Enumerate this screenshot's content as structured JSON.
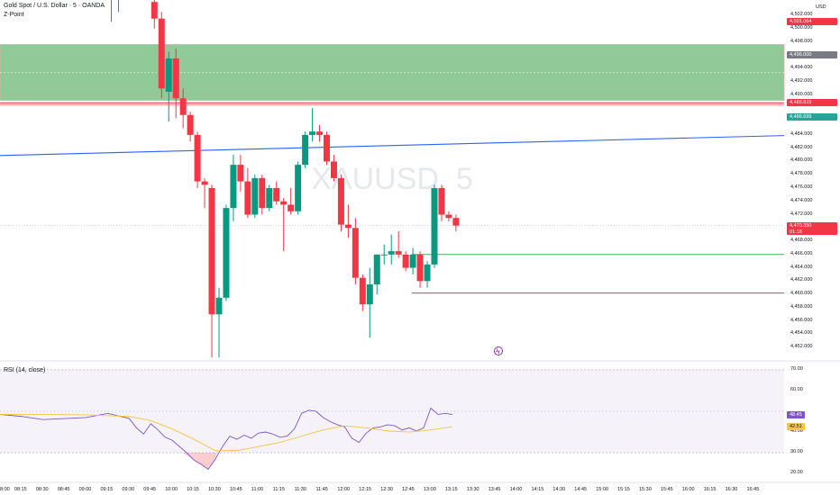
{
  "header": {
    "symbol_line": "Gold Spot / U.S. Dollar · 5 · OANDA",
    "indicator": "Z-Point",
    "currency": "USD",
    "watermark": "XAUUSD, 5"
  },
  "price_axis": {
    "ticks": [
      "4,502.000",
      "4,500.000",
      "4,498.000",
      "4,494.000",
      "4,492.000",
      "4,490.000",
      "4,484.000",
      "4,482.000",
      "4,480.000",
      "4,478.000",
      "4,476.000",
      "4,474.000",
      "4,472.000",
      "4,468.000",
      "4,466.000",
      "4,464.000",
      "4,462.000",
      "4,460.000",
      "4,458.000",
      "4,456.000",
      "4,454.000",
      "4,452.000"
    ],
    "tick_values": [
      4502,
      4500,
      4498,
      4494,
      4492,
      4490,
      4484,
      4482,
      4480,
      4478,
      4476,
      4474,
      4472,
      4468,
      4466,
      4464,
      4462,
      4460,
      4458,
      4456,
      4454,
      4452
    ],
    "range": [
      4450.4,
      4504.3
    ]
  },
  "badges": [
    {
      "label": "4,501.064",
      "value": 4501.064,
      "color": "#f23645"
    },
    {
      "label": "4,496.000",
      "value": 4496.0,
      "color": "#787b86"
    },
    {
      "label": "4,488.819",
      "value": 4488.819,
      "color": "#f23645"
    },
    {
      "label": "4,486.699",
      "value": 4486.699,
      "color": "#26a69a"
    },
    {
      "label": "4,470.350",
      "value": 4470.35,
      "color": "#f23645",
      "sub": "01:18"
    }
  ],
  "zones": {
    "supply_zone": {
      "top": 4497.6,
      "bottom": 4489.2,
      "fill": "#7fbf87"
    },
    "red_level": {
      "value": 4488.819,
      "color": "#f23645"
    },
    "blue_trendline": {
      "from": 4480.9,
      "to": 4483.9,
      "color": "#2962ff"
    },
    "green_line": {
      "value": 4466.0,
      "color": "#4caf50"
    },
    "red_line": {
      "value": 4460.2,
      "color": "#f23645"
    }
  },
  "rsi": {
    "label": "RSI (14, close)",
    "ticks": [
      "70.00",
      "60.00",
      "40.00",
      "30.00",
      "20.00"
    ],
    "tick_values": [
      70,
      60,
      40,
      30,
      20
    ],
    "range": [
      17,
      73
    ],
    "rsi_value": "48.45",
    "ma_value": "42.51",
    "rsi_color": "#7e57c2",
    "ma_color": "#f5c542"
  },
  "time_axis": {
    "labels": [
      "8:00",
      "08:15",
      "08:30",
      "08:45",
      "09:00",
      "09:15",
      "09:30",
      "09:45",
      "10:00",
      "10:15",
      "10:30",
      "10:45",
      "11:00",
      "11:15",
      "11:30",
      "11:45",
      "12:00",
      "12:15",
      "12:30",
      "12:45",
      "13:00",
      "13:15",
      "13:30",
      "13:45",
      "14:00",
      "14:15",
      "14:30",
      "14:45",
      "15:00",
      "15:15",
      "15:30",
      "15:45",
      "16:00",
      "16:15",
      "16:30",
      "16:45"
    ]
  },
  "chart_data": {
    "type": "candlestick",
    "title": "Gold Spot / U.S. Dollar · 5 · OANDA",
    "interval": "5",
    "up_color": "#089981",
    "down_color": "#f23645",
    "candles": [
      {
        "t": "09:15",
        "o": 4505.5,
        "h": 4506.0,
        "l": 4501.0,
        "c": 4504.5
      },
      {
        "t": "09:20",
        "o": 4505.0,
        "h": 4506.0,
        "l": 4502.5,
        "c": 4505.5
      },
      {
        "t": "09:45",
        "o": 4504.0,
        "h": 4505.0,
        "l": 4500.0,
        "c": 4501.5
      },
      {
        "t": "09:50",
        "o": 4501.5,
        "h": 4502.5,
        "l": 4489.5,
        "c": 4491.0
      },
      {
        "t": "09:55",
        "o": 4490.5,
        "h": 4496.5,
        "l": 4486.0,
        "c": 4495.5
      },
      {
        "t": "10:00",
        "o": 4495.5,
        "h": 4497.0,
        "l": 4486.5,
        "c": 4489.5
      },
      {
        "t": "10:05",
        "o": 4489.5,
        "h": 4491.0,
        "l": 4485.0,
        "c": 4487.0
      },
      {
        "t": "10:10",
        "o": 4487.0,
        "h": 4487.5,
        "l": 4483.0,
        "c": 4484.0
      },
      {
        "t": "10:15",
        "o": 4484.0,
        "h": 4484.5,
        "l": 4476.0,
        "c": 4477.0
      },
      {
        "t": "10:20",
        "o": 4477.0,
        "h": 4477.5,
        "l": 4473.0,
        "c": 4476.5
      },
      {
        "t": "10:25",
        "o": 4476.0,
        "h": 4476.5,
        "l": 4450.5,
        "c": 4457.0
      },
      {
        "t": "10:30",
        "o": 4457.0,
        "h": 4461.0,
        "l": 4450.5,
        "c": 4459.5
      },
      {
        "t": "10:35",
        "o": 4459.5,
        "h": 4473.5,
        "l": 4459.0,
        "c": 4473.0
      },
      {
        "t": "10:40",
        "o": 4473.0,
        "h": 4481.0,
        "l": 4471.0,
        "c": 4479.5
      },
      {
        "t": "10:45",
        "o": 4479.5,
        "h": 4481.0,
        "l": 4475.5,
        "c": 4477.0
      },
      {
        "t": "10:50",
        "o": 4477.0,
        "h": 4479.0,
        "l": 4471.5,
        "c": 4472.0
      },
      {
        "t": "10:55",
        "o": 4472.0,
        "h": 4478.0,
        "l": 4471.5,
        "c": 4477.5
      },
      {
        "t": "11:00",
        "o": 4477.5,
        "h": 4478.0,
        "l": 4472.0,
        "c": 4473.0
      },
      {
        "t": "11:05",
        "o": 4473.0,
        "h": 4476.5,
        "l": 4472.5,
        "c": 4476.0
      },
      {
        "t": "11:10",
        "o": 4476.0,
        "h": 4477.0,
        "l": 4473.5,
        "c": 4474.0
      },
      {
        "t": "11:15",
        "o": 4474.0,
        "h": 4474.5,
        "l": 4466.5,
        "c": 4473.5
      },
      {
        "t": "11:20",
        "o": 4473.5,
        "h": 4476.0,
        "l": 4472.0,
        "c": 4472.5
      },
      {
        "t": "11:25",
        "o": 4472.5,
        "h": 4480.0,
        "l": 4472.0,
        "c": 4479.5
      },
      {
        "t": "11:30",
        "o": 4479.5,
        "h": 4484.5,
        "l": 4479.0,
        "c": 4484.0
      },
      {
        "t": "11:35",
        "o": 4484.0,
        "h": 4488.0,
        "l": 4483.0,
        "c": 4484.5
      },
      {
        "t": "11:40",
        "o": 4484.5,
        "h": 4485.5,
        "l": 4483.0,
        "c": 4484.0
      },
      {
        "t": "11:45",
        "o": 4484.0,
        "h": 4484.5,
        "l": 4479.5,
        "c": 4480.0
      },
      {
        "t": "11:50",
        "o": 4480.0,
        "h": 4481.0,
        "l": 4477.0,
        "c": 4477.5
      },
      {
        "t": "11:55",
        "o": 4477.5,
        "h": 4478.0,
        "l": 4469.5,
        "c": 4470.5
      },
      {
        "t": "12:00",
        "o": 4470.5,
        "h": 4473.5,
        "l": 4468.5,
        "c": 4470.0
      },
      {
        "t": "12:05",
        "o": 4470.0,
        "h": 4471.5,
        "l": 4461.5,
        "c": 4462.5
      },
      {
        "t": "12:10",
        "o": 4462.5,
        "h": 4463.0,
        "l": 4457.5,
        "c": 4458.5
      },
      {
        "t": "12:15",
        "o": 4458.5,
        "h": 4464.0,
        "l": 4453.5,
        "c": 4461.5
      },
      {
        "t": "12:20",
        "o": 4461.5,
        "h": 4466.0,
        "l": 4460.0,
        "c": 4466.0
      },
      {
        "t": "12:25",
        "o": 4466.0,
        "h": 4467.5,
        "l": 4464.5,
        "c": 4466.0
      },
      {
        "t": "12:30",
        "o": 4466.0,
        "h": 4469.0,
        "l": 4464.5,
        "c": 4466.5
      },
      {
        "t": "12:35",
        "o": 4466.5,
        "h": 4469.5,
        "l": 4465.5,
        "c": 4466.0
      },
      {
        "t": "12:40",
        "o": 4466.0,
        "h": 4466.5,
        "l": 4463.5,
        "c": 4464.0
      },
      {
        "t": "12:45",
        "o": 4464.0,
        "h": 4467.0,
        "l": 4463.0,
        "c": 4466.0
      },
      {
        "t": "12:50",
        "o": 4466.0,
        "h": 4466.5,
        "l": 4461.0,
        "c": 4462.0
      },
      {
        "t": "12:55",
        "o": 4462.0,
        "h": 4465.0,
        "l": 4461.0,
        "c": 4464.5
      },
      {
        "t": "13:00",
        "o": 4464.5,
        "h": 4476.5,
        "l": 4464.0,
        "c": 4476.0
      },
      {
        "t": "13:05",
        "o": 4476.0,
        "h": 4476.5,
        "l": 4471.0,
        "c": 4472.0
      },
      {
        "t": "13:10",
        "o": 4472.0,
        "h": 4472.5,
        "l": 4471.0,
        "c": 4471.5
      },
      {
        "t": "13:15",
        "o": 4471.5,
        "h": 4472.0,
        "l": 4469.5,
        "c": 4470.35
      }
    ],
    "rsi_series": [
      {
        "t": "08:00",
        "v": 48.5
      },
      {
        "t": "08:15",
        "v": 47.5
      },
      {
        "t": "08:30",
        "v": 46.0
      },
      {
        "t": "08:45",
        "v": 46.5
      },
      {
        "t": "09:00",
        "v": 47.0
      },
      {
        "t": "09:15",
        "v": 49.0
      },
      {
        "t": "09:30",
        "v": 46.5
      },
      {
        "t": "09:35",
        "v": 42.0
      },
      {
        "t": "09:40",
        "v": 39.0
      },
      {
        "t": "09:45",
        "v": 44.0
      },
      {
        "t": "09:50",
        "v": 41.0
      },
      {
        "t": "09:55",
        "v": 37.5
      },
      {
        "t": "10:00",
        "v": 36.0
      },
      {
        "t": "10:05",
        "v": 33.0
      },
      {
        "t": "10:10",
        "v": 30.0
      },
      {
        "t": "10:15",
        "v": 26.5
      },
      {
        "t": "10:20",
        "v": 24.5
      },
      {
        "t": "10:25",
        "v": 22.0
      },
      {
        "t": "10:30",
        "v": 27.0
      },
      {
        "t": "10:35",
        "v": 33.0
      },
      {
        "t": "10:40",
        "v": 38.0
      },
      {
        "t": "10:45",
        "v": 36.5
      },
      {
        "t": "10:50",
        "v": 38.5
      },
      {
        "t": "10:55",
        "v": 37.0
      },
      {
        "t": "11:00",
        "v": 39.5
      },
      {
        "t": "11:05",
        "v": 40.0
      },
      {
        "t": "11:10",
        "v": 39.0
      },
      {
        "t": "11:15",
        "v": 37.5
      },
      {
        "t": "11:20",
        "v": 38.0
      },
      {
        "t": "11:25",
        "v": 41.5
      },
      {
        "t": "11:30",
        "v": 49.0
      },
      {
        "t": "11:35",
        "v": 50.5
      },
      {
        "t": "11:40",
        "v": 50.0
      },
      {
        "t": "11:45",
        "v": 47.0
      },
      {
        "t": "11:50",
        "v": 45.0
      },
      {
        "t": "11:55",
        "v": 43.5
      },
      {
        "t": "12:00",
        "v": 42.5
      },
      {
        "t": "12:05",
        "v": 37.0
      },
      {
        "t": "12:10",
        "v": 35.0
      },
      {
        "t": "12:15",
        "v": 39.5
      },
      {
        "t": "12:20",
        "v": 42.0
      },
      {
        "t": "12:25",
        "v": 42.5
      },
      {
        "t": "12:30",
        "v": 43.5
      },
      {
        "t": "12:35",
        "v": 43.0
      },
      {
        "t": "12:40",
        "v": 41.0
      },
      {
        "t": "12:45",
        "v": 42.0
      },
      {
        "t": "12:50",
        "v": 40.5
      },
      {
        "t": "12:55",
        "v": 42.0
      },
      {
        "t": "13:00",
        "v": 51.5
      },
      {
        "t": "13:05",
        "v": 48.5
      },
      {
        "t": "13:10",
        "v": 49.0
      },
      {
        "t": "13:15",
        "v": 48.45
      }
    ],
    "rsi_ma_series": [
      {
        "t": "08:00",
        "v": 48.5
      },
      {
        "t": "08:30",
        "v": 48.5
      },
      {
        "t": "09:00",
        "v": 48.3
      },
      {
        "t": "09:30",
        "v": 47.5
      },
      {
        "t": "09:45",
        "v": 45.5
      },
      {
        "t": "10:00",
        "v": 41.5
      },
      {
        "t": "10:15",
        "v": 36.5
      },
      {
        "t": "10:30",
        "v": 31.0
      },
      {
        "t": "10:45",
        "v": 31.0
      },
      {
        "t": "11:00",
        "v": 33.0
      },
      {
        "t": "11:15",
        "v": 35.0
      },
      {
        "t": "11:30",
        "v": 38.0
      },
      {
        "t": "11:45",
        "v": 41.0
      },
      {
        "t": "12:00",
        "v": 43.0
      },
      {
        "t": "12:15",
        "v": 42.0
      },
      {
        "t": "12:30",
        "v": 40.5
      },
      {
        "t": "12:45",
        "v": 40.0
      },
      {
        "t": "13:00",
        "v": 41.0
      },
      {
        "t": "13:15",
        "v": 42.51
      }
    ]
  }
}
